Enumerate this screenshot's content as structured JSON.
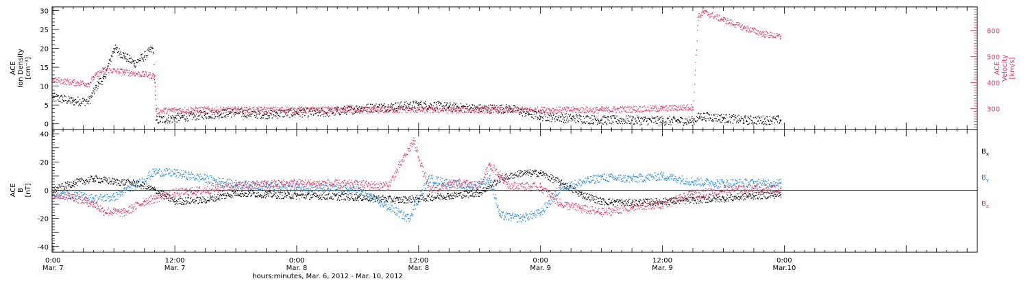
{
  "colors": {
    "black": "#000000",
    "red": "#e3305a",
    "blue": "#1a86e6"
  },
  "xlabel": "hours:minutes, Mar. 6, 2012 - Mar. 10, 2012",
  "x_ticks": [
    {
      "time": "2012-03-07T00:00",
      "l1": "0:00",
      "l2": "Mar. 7"
    },
    {
      "time": "2012-03-07T12:00",
      "l1": "12:00",
      "l2": "Mar. 7"
    },
    {
      "time": "2012-03-08T00:00",
      "l1": "0:00",
      "l2": "Mar. 8"
    },
    {
      "time": "2012-03-08T12:00",
      "l1": "12:00",
      "l2": "Mar. 8"
    },
    {
      "time": "2012-03-09T00:00",
      "l1": "0:00",
      "l2": "Mar. 9"
    },
    {
      "time": "2012-03-09T12:00",
      "l1": "12:00",
      "l2": "Mar. 9"
    },
    {
      "time": "2012-03-10T00:00",
      "l1": "0:00",
      "l2": "Mar.10"
    }
  ],
  "chart_data": [
    {
      "type": "scatter",
      "panel": "plasma",
      "ylabel_left": [
        "ACE",
        "Ion Density",
        "[cm⁻³]"
      ],
      "ylabel_right": [
        "ACE",
        "Velocity",
        "[km/s]"
      ],
      "xlim": [
        "2012-03-06T23:55",
        "2012-03-10T19:00"
      ],
      "ylim_left": [
        -1.5,
        31
      ],
      "yticks_left": [
        0,
        5,
        10,
        15,
        20,
        25,
        30
      ],
      "ylim_right": [
        220,
        690
      ],
      "yticks_right": [
        300,
        400,
        500,
        600
      ],
      "series": [
        {
          "axis": "left",
          "color": "black",
          "points": [
            [
              "2012-03-07T00:00",
              7
            ],
            [
              "2012-03-07T02:00",
              6
            ],
            [
              "2012-03-07T03:30",
              6
            ],
            [
              "2012-03-07T04:30",
              11
            ],
            [
              "2012-03-07T05:00",
              12
            ],
            [
              "2012-03-07T06:00",
              20
            ],
            [
              "2012-03-07T07:00",
              18
            ],
            [
              "2012-03-07T08:00",
              16
            ],
            [
              "2012-03-07T09:00",
              18
            ],
            [
              "2012-03-07T09:50",
              20
            ],
            [
              "2012-03-07T10:10",
              1
            ],
            [
              "2012-03-07T12:00",
              1.5
            ],
            [
              "2012-03-07T15:00",
              2.5
            ],
            [
              "2012-03-07T18:00",
              3
            ],
            [
              "2012-03-07T21:00",
              2.5
            ],
            [
              "2012-03-08T00:00",
              3
            ],
            [
              "2012-03-08T03:00",
              3
            ],
            [
              "2012-03-08T06:00",
              4
            ],
            [
              "2012-03-08T09:00",
              4.5
            ],
            [
              "2012-03-08T12:00",
              5
            ],
            [
              "2012-03-08T15:00",
              4.5
            ],
            [
              "2012-03-08T18:00",
              4
            ],
            [
              "2012-03-08T21:00",
              4
            ],
            [
              "2012-03-09T00:00",
              2
            ],
            [
              "2012-03-09T03:00",
              1.5
            ],
            [
              "2012-03-09T06:00",
              1
            ],
            [
              "2012-03-09T09:00",
              1
            ],
            [
              "2012-03-09T12:00",
              0.8
            ],
            [
              "2012-03-09T15:00",
              0.8
            ],
            [
              "2012-03-09T15:40",
              2
            ],
            [
              "2012-03-09T18:00",
              1.5
            ],
            [
              "2012-03-09T20:00",
              1
            ],
            [
              "2012-03-09T23:40",
              1
            ]
          ]
        },
        {
          "axis": "right",
          "color": "red",
          "points": [
            [
              "2012-03-07T00:00",
              410
            ],
            [
              "2012-03-07T02:00",
              400
            ],
            [
              "2012-03-07T03:30",
              395
            ],
            [
              "2012-03-07T04:00",
              420
            ],
            [
              "2012-03-07T05:00",
              450
            ],
            [
              "2012-03-07T07:00",
              440
            ],
            [
              "2012-03-07T09:00",
              430
            ],
            [
              "2012-03-07T10:00",
              425
            ],
            [
              "2012-03-07T10:10",
              290
            ],
            [
              "2012-03-07T12:00",
              295
            ],
            [
              "2012-03-07T18:00",
              295
            ],
            [
              "2012-03-08T00:00",
              295
            ],
            [
              "2012-03-08T06:00",
              295
            ],
            [
              "2012-03-08T12:00",
              295
            ],
            [
              "2012-03-08T18:00",
              295
            ],
            [
              "2012-03-09T00:00",
              295
            ],
            [
              "2012-03-09T06:00",
              295
            ],
            [
              "2012-03-09T12:00",
              300
            ],
            [
              "2012-03-09T15:00",
              305
            ],
            [
              "2012-03-09T15:30",
              650
            ],
            [
              "2012-03-09T16:00",
              670
            ],
            [
              "2012-03-09T18:00",
              640
            ],
            [
              "2012-03-09T20:00",
              610
            ],
            [
              "2012-03-09T22:00",
              585
            ],
            [
              "2012-03-09T23:40",
              575
            ]
          ]
        }
      ]
    },
    {
      "type": "scatter",
      "panel": "magnetic_field",
      "ylabel_left": [
        "ACE",
        "B",
        "[nT]"
      ],
      "xlim": [
        "2012-03-06T23:55",
        "2012-03-10T19:00"
      ],
      "ylim": [
        -44,
        43
      ],
      "yticks": [
        -40,
        -20,
        0,
        20,
        40
      ],
      "zero_line": true,
      "series": [
        {
          "name": "Bx",
          "color": "black",
          "points": [
            [
              "2012-03-07T00:00",
              0
            ],
            [
              "2012-03-07T02:00",
              5
            ],
            [
              "2012-03-07T04:00",
              8
            ],
            [
              "2012-03-07T06:00",
              6
            ],
            [
              "2012-03-07T08:00",
              5
            ],
            [
              "2012-03-07T10:00",
              0
            ],
            [
              "2012-03-07T12:00",
              -8
            ],
            [
              "2012-03-07T15:00",
              -7
            ],
            [
              "2012-03-07T18:00",
              -2
            ],
            [
              "2012-03-07T21:00",
              -3
            ],
            [
              "2012-03-08T00:00",
              -4
            ],
            [
              "2012-03-08T06:00",
              -5
            ],
            [
              "2012-03-08T10:00",
              -7
            ],
            [
              "2012-03-08T12:00",
              -6
            ],
            [
              "2012-03-08T15:00",
              -4
            ],
            [
              "2012-03-08T18:00",
              -2
            ],
            [
              "2012-03-08T20:00",
              8
            ],
            [
              "2012-03-08T22:00",
              12
            ],
            [
              "2012-03-09T00:00",
              12
            ],
            [
              "2012-03-09T02:00",
              5
            ],
            [
              "2012-03-09T04:00",
              -3
            ],
            [
              "2012-03-09T06:00",
              -8
            ],
            [
              "2012-03-09T09:00",
              -9
            ],
            [
              "2012-03-09T12:00",
              -8
            ],
            [
              "2012-03-09T15:00",
              -7
            ],
            [
              "2012-03-09T18:00",
              -6
            ],
            [
              "2012-03-09T21:00",
              -4
            ],
            [
              "2012-03-09T23:40",
              -3
            ]
          ]
        },
        {
          "name": "By",
          "color": "blue",
          "points": [
            [
              "2012-03-07T00:00",
              -3
            ],
            [
              "2012-03-07T02:00",
              -3
            ],
            [
              "2012-03-07T04:00",
              -6
            ],
            [
              "2012-03-07T06:00",
              -5
            ],
            [
              "2012-03-07T08:00",
              3
            ],
            [
              "2012-03-07T10:00",
              13
            ],
            [
              "2012-03-07T12:00",
              12
            ],
            [
              "2012-03-07T15:00",
              8
            ],
            [
              "2012-03-07T18:00",
              4
            ],
            [
              "2012-03-07T21:00",
              3
            ],
            [
              "2012-03-08T00:00",
              2
            ],
            [
              "2012-03-08T06:00",
              0
            ],
            [
              "2012-03-08T11:00",
              -20
            ],
            [
              "2012-03-08T13:00",
              8
            ],
            [
              "2012-03-08T17:00",
              2
            ],
            [
              "2012-03-08T19:00",
              8
            ],
            [
              "2012-03-08T20:00",
              -18
            ],
            [
              "2012-03-08T22:00",
              -20
            ],
            [
              "2012-03-09T00:00",
              -16
            ],
            [
              "2012-03-09T02:00",
              2
            ],
            [
              "2012-03-09T06:00",
              9
            ],
            [
              "2012-03-09T09:00",
              8
            ],
            [
              "2012-03-09T12:00",
              10
            ],
            [
              "2012-03-09T15:00",
              6
            ],
            [
              "2012-03-09T18:00",
              5
            ],
            [
              "2012-03-09T21:00",
              5
            ],
            [
              "2012-03-09T23:40",
              5
            ]
          ]
        },
        {
          "name": "Bz",
          "color": "red",
          "points": [
            [
              "2012-03-07T00:00",
              -3
            ],
            [
              "2012-03-07T02:00",
              -5
            ],
            [
              "2012-03-07T04:00",
              -10
            ],
            [
              "2012-03-07T05:00",
              -15
            ],
            [
              "2012-03-07T07:00",
              -16
            ],
            [
              "2012-03-07T09:00",
              -8
            ],
            [
              "2012-03-07T10:00",
              -6
            ],
            [
              "2012-03-07T12:00",
              -2
            ],
            [
              "2012-03-07T15:00",
              0
            ],
            [
              "2012-03-07T18:00",
              3
            ],
            [
              "2012-03-07T21:00",
              4
            ],
            [
              "2012-03-08T00:00",
              5
            ],
            [
              "2012-03-08T06:00",
              4
            ],
            [
              "2012-03-08T09:00",
              3
            ],
            [
              "2012-03-08T11:30",
              35
            ],
            [
              "2012-03-08T13:00",
              0
            ],
            [
              "2012-03-08T16:00",
              5
            ],
            [
              "2012-03-08T18:00",
              3
            ],
            [
              "2012-03-08T19:00",
              18
            ],
            [
              "2012-03-08T21:00",
              3
            ],
            [
              "2012-03-09T00:00",
              2
            ],
            [
              "2012-03-09T02:00",
              -10
            ],
            [
              "2012-03-09T04:00",
              -13
            ],
            [
              "2012-03-09T06:00",
              -16
            ],
            [
              "2012-03-09T09:00",
              -12
            ],
            [
              "2012-03-09T12:00",
              -10
            ],
            [
              "2012-03-09T15:00",
              -3
            ],
            [
              "2012-03-09T18:00",
              0
            ],
            [
              "2012-03-09T21:00",
              1
            ],
            [
              "2012-03-09T23:40",
              1
            ]
          ]
        }
      ]
    }
  ]
}
